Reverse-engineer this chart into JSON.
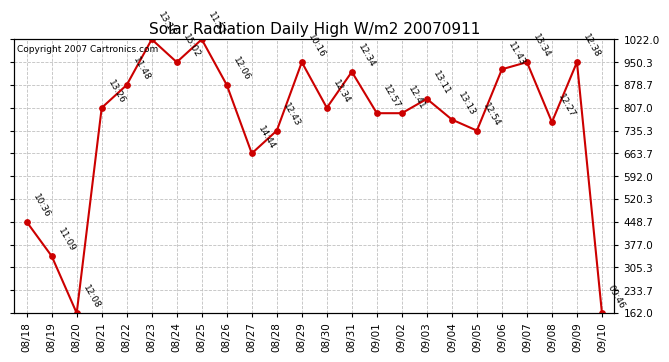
{
  "title": "Solar Radiation Daily High W/m2 20070911",
  "copyright": "Copyright 2007 Cartronics.com",
  "dates": [
    "08/18",
    "08/19",
    "08/20",
    "08/21",
    "08/22",
    "08/23",
    "08/24",
    "08/25",
    "08/26",
    "08/27",
    "08/28",
    "08/29",
    "08/30",
    "08/31",
    "09/01",
    "09/02",
    "09/03",
    "09/04",
    "09/05",
    "09/06",
    "09/07",
    "09/08",
    "09/09",
    "09/10"
  ],
  "values": [
    448.7,
    341.0,
    162.0,
    807.0,
    878.7,
    1022.0,
    950.3,
    1022.0,
    878.7,
    663.7,
    735.3,
    950.3,
    807.0,
    920.0,
    790.0,
    790.0,
    835.0,
    770.0,
    735.3,
    928.0,
    950.3,
    762.0,
    950.3,
    162.0
  ],
  "labels": [
    "10:36",
    "11:09",
    "12:08",
    "13:26",
    "11:48",
    "13:16",
    "15:02",
    "11:51",
    "12:06",
    "14:44",
    "12:43",
    "10:16",
    "12:34",
    "12:34",
    "12:57",
    "12:41",
    "13:11",
    "13:13",
    "12:54",
    "11:43",
    "13:34",
    "12:27",
    "12:38",
    "09:46"
  ],
  "ylim": [
    162.0,
    1022.0
  ],
  "yticks": [
    162.0,
    233.7,
    305.3,
    377.0,
    448.7,
    520.3,
    592.0,
    663.7,
    735.3,
    807.0,
    878.7,
    950.3,
    1022.0
  ],
  "line_color": "#cc0000",
  "marker_color": "#cc0000",
  "bg_color": "#ffffff",
  "grid_color": "#c0c0c0",
  "title_fontsize": 11,
  "label_fontsize": 6.5,
  "tick_fontsize": 7.5,
  "copyright_fontsize": 6.5
}
